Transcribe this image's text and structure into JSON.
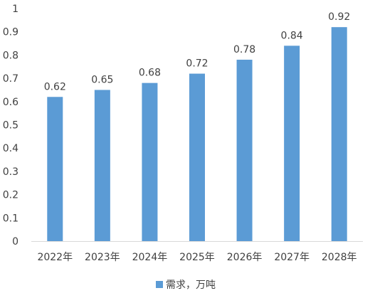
{
  "chart_data": {
    "type": "bar",
    "categories": [
      "2022年",
      "2023年",
      "2024年",
      "2025年",
      "2026年",
      "2027年",
      "2028年"
    ],
    "series": [
      {
        "name": "需求，万吨",
        "values": [
          0.62,
          0.65,
          0.68,
          0.72,
          0.78,
          0.84,
          0.92
        ],
        "color": "#5B9BD5"
      }
    ],
    "data_labels": [
      "0.62",
      "0.65",
      "0.68",
      "0.72",
      "0.78",
      "0.84",
      "0.92"
    ],
    "y_ticks": [
      "0",
      "0.1",
      "0.2",
      "0.3",
      "0.4",
      "0.5",
      "0.6",
      "0.7",
      "0.8",
      "0.9",
      "1"
    ],
    "ylim": [
      0,
      1
    ],
    "grid": false,
    "legend_position": "bottom"
  }
}
